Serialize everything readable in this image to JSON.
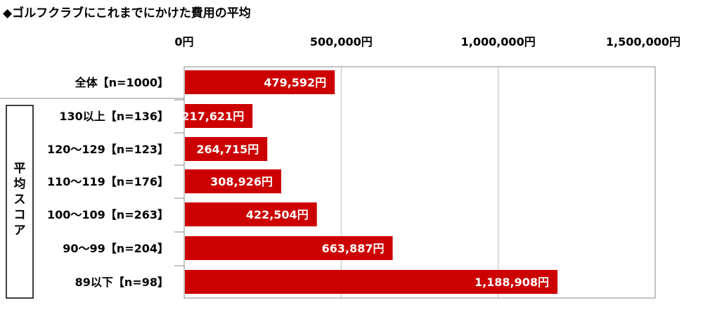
{
  "title": "◆ゴルフクラブにこれまでにかけた費用の平均",
  "chart_data": {
    "type": "bar",
    "orientation": "horizontal",
    "title": "◆ゴルフクラブにこれまでにかけた費用の平均",
    "unit": "円",
    "xlim": [
      0,
      1500000
    ],
    "ticks": [
      {
        "value": 0,
        "label": "0円"
      },
      {
        "value": 500000,
        "label": "500,000円"
      },
      {
        "value": 1000000,
        "label": "1,000,000円"
      },
      {
        "value": 1500000,
        "label": "1,500,000円"
      }
    ],
    "grid": true,
    "group_label": "平均スコア",
    "categories": [
      "全体【n=1000】",
      "130以上【n=136】",
      "120～129【n=123】",
      "110～119【n=176】",
      "100～109【n=263】",
      "90～99【n=204】",
      "89以下【n=98】"
    ],
    "values": [
      479592,
      217621,
      264715,
      308926,
      422504,
      663887,
      1188908
    ],
    "value_labels": [
      "479,592円",
      "217,621円",
      "264,715円",
      "308,926円",
      "422,504円",
      "663,887円",
      "1,188,908円"
    ],
    "bar_color": "#cc0000"
  }
}
